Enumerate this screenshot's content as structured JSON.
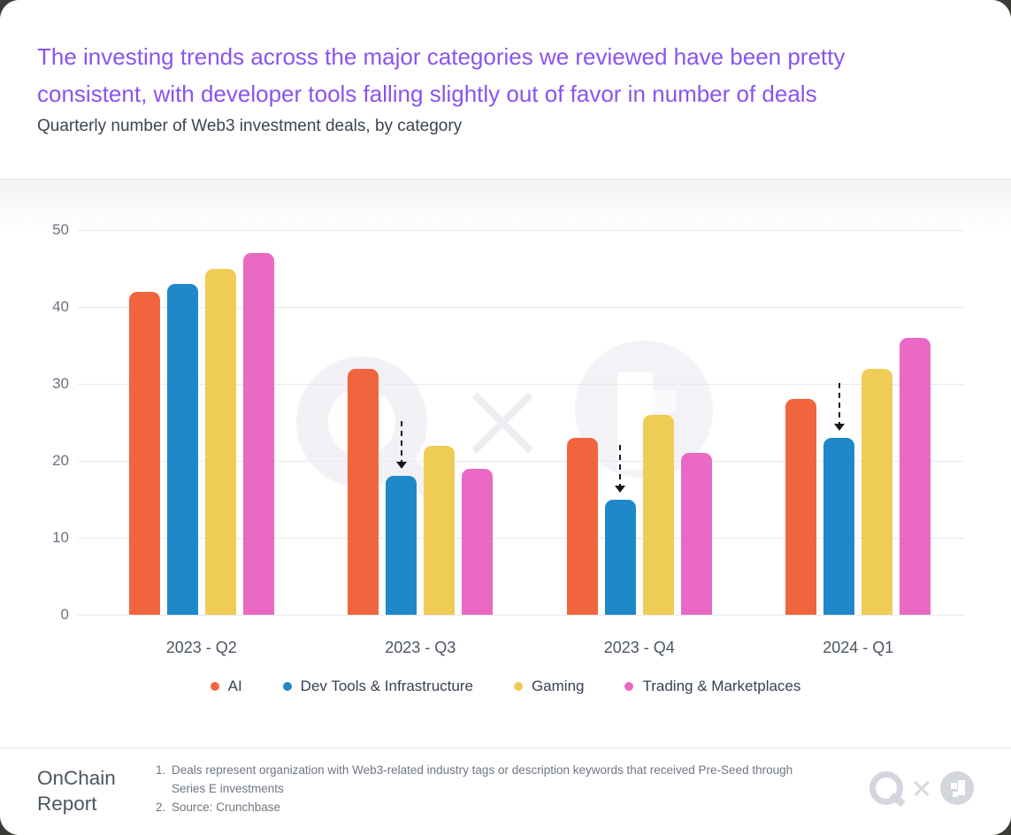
{
  "header": {
    "title_line1": "The investing trends across the major categories we reviewed have been pretty",
    "title_line2": "consistent, with developer tools falling slightly out of favor in number of deals",
    "subtitle": "Quarterly number of Web3 investment deals, by category",
    "title_color": "#8A53F0"
  },
  "chart_data": {
    "type": "bar",
    "title": "The investing trends across the major categories we reviewed have been pretty consistent, with developer tools falling slightly out of favor in number of deals",
    "subtitle": "Quarterly number of Web3 investment deals, by category",
    "categories": [
      "2023 - Q2",
      "2023 - Q3",
      "2023 - Q4",
      "2024 - Q1"
    ],
    "series": [
      {
        "name": "AI",
        "color": "#F0653E",
        "values": [
          42,
          32,
          23,
          28
        ]
      },
      {
        "name": "Dev Tools & Infrastructure",
        "color": "#1E88C9",
        "values": [
          43,
          18,
          15,
          23
        ]
      },
      {
        "name": "Gaming",
        "color": "#EFCC55",
        "values": [
          45,
          22,
          26,
          32
        ]
      },
      {
        "name": "Trading & Marketplaces",
        "color": "#E969C5",
        "values": [
          47,
          19,
          21,
          36
        ]
      }
    ],
    "xlabel": "",
    "ylabel": "",
    "ylim": [
      0,
      50
    ],
    "yticks": [
      0,
      10,
      20,
      30,
      40,
      50
    ],
    "grid": true,
    "legend_position": "bottom",
    "annotations": {
      "down_arrows": {
        "series": "Dev Tools & Infrastructure",
        "categories": [
          "2023 - Q3",
          "2023 - Q4",
          "2024 - Q1"
        ]
      }
    }
  },
  "footer": {
    "brand_line1": "OnChain",
    "brand_line2": "Report",
    "footnotes": [
      {
        "num": "1.",
        "text": "Deals represent organization with Web3-related industry tags or description keywords that received Pre-Seed through Series E investments"
      },
      {
        "num": "2.",
        "text": "Source: Crunchbase"
      }
    ],
    "logos": [
      "quicknode-logo",
      "cross-icon",
      "artemis-logo"
    ],
    "logo_color": "#d3d6dc"
  }
}
